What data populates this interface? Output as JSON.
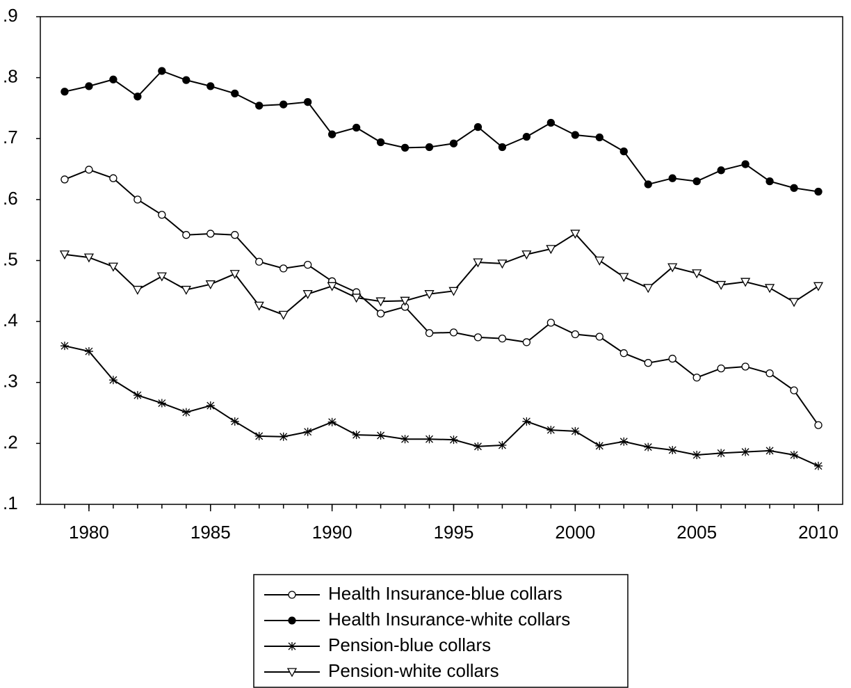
{
  "chart_data": {
    "type": "line",
    "x": [
      1979,
      1980,
      1981,
      1982,
      1983,
      1984,
      1985,
      1986,
      1987,
      1988,
      1989,
      1990,
      1991,
      1992,
      1993,
      1994,
      1995,
      1996,
      1997,
      1998,
      1999,
      2000,
      2001,
      2002,
      2003,
      2004,
      2005,
      2006,
      2007,
      2008,
      2009,
      2010
    ],
    "xlim": [
      1978,
      2011
    ],
    "xticks": [
      1980,
      1985,
      1990,
      1995,
      2000,
      2005,
      2010
    ],
    "ylim": [
      0.1,
      0.9
    ],
    "yticks": [
      {
        "value": 0.1,
        "label": ".1"
      },
      {
        "value": 0.2,
        "label": ".2"
      },
      {
        "value": 0.3,
        "label": ".3"
      },
      {
        "value": 0.4,
        "label": ".4"
      },
      {
        "value": 0.5,
        "label": ".5"
      },
      {
        "value": 0.6,
        "label": ".6"
      },
      {
        "value": 0.7,
        "label": ".7"
      },
      {
        "value": 0.8,
        "label": ".8"
      },
      {
        "value": 0.9,
        "label": ".9"
      }
    ],
    "grid": false,
    "legend": "bottom",
    "series": [
      {
        "name": "Health Insurance-blue collars",
        "color": "#000000",
        "marker": "circle-open",
        "values": [
          0.633,
          0.649,
          0.635,
          0.6,
          0.575,
          0.542,
          0.544,
          0.542,
          0.498,
          0.487,
          0.493,
          0.466,
          0.448,
          0.413,
          0.424,
          0.381,
          0.382,
          0.374,
          0.372,
          0.366,
          0.398,
          0.379,
          0.375,
          0.348,
          0.332,
          0.339,
          0.308,
          0.323,
          0.326,
          0.315,
          0.287,
          0.23
        ]
      },
      {
        "name": "Health Insurance-white collars",
        "color": "#000000",
        "marker": "circle-filled",
        "values": [
          0.777,
          0.786,
          0.797,
          0.769,
          0.811,
          0.796,
          0.786,
          0.774,
          0.754,
          0.756,
          0.76,
          0.707,
          0.718,
          0.694,
          0.685,
          0.686,
          0.692,
          0.719,
          0.686,
          0.703,
          0.726,
          0.706,
          0.702,
          0.679,
          0.625,
          0.635,
          0.63,
          0.648,
          0.658,
          0.63,
          0.619,
          0.613
        ]
      },
      {
        "name": "Pension-blue collars",
        "color": "#000000",
        "marker": "star",
        "values": [
          0.36,
          0.351,
          0.304,
          0.279,
          0.266,
          0.251,
          0.262,
          0.236,
          0.212,
          0.211,
          0.219,
          0.235,
          0.214,
          0.213,
          0.207,
          0.207,
          0.206,
          0.195,
          0.197,
          0.236,
          0.222,
          0.22,
          0.196,
          0.203,
          0.194,
          0.189,
          0.181,
          0.184,
          0.186,
          0.188,
          0.181,
          0.163
        ]
      },
      {
        "name": "Pension-white collars",
        "color": "#000000",
        "marker": "triangle-down-open",
        "values": [
          0.51,
          0.505,
          0.49,
          0.452,
          0.474,
          0.452,
          0.461,
          0.478,
          0.426,
          0.411,
          0.445,
          0.458,
          0.439,
          0.433,
          0.434,
          0.445,
          0.45,
          0.497,
          0.495,
          0.51,
          0.519,
          0.544,
          0.5,
          0.473,
          0.455,
          0.489,
          0.479,
          0.46,
          0.465,
          0.455,
          0.432,
          0.458
        ]
      }
    ]
  }
}
